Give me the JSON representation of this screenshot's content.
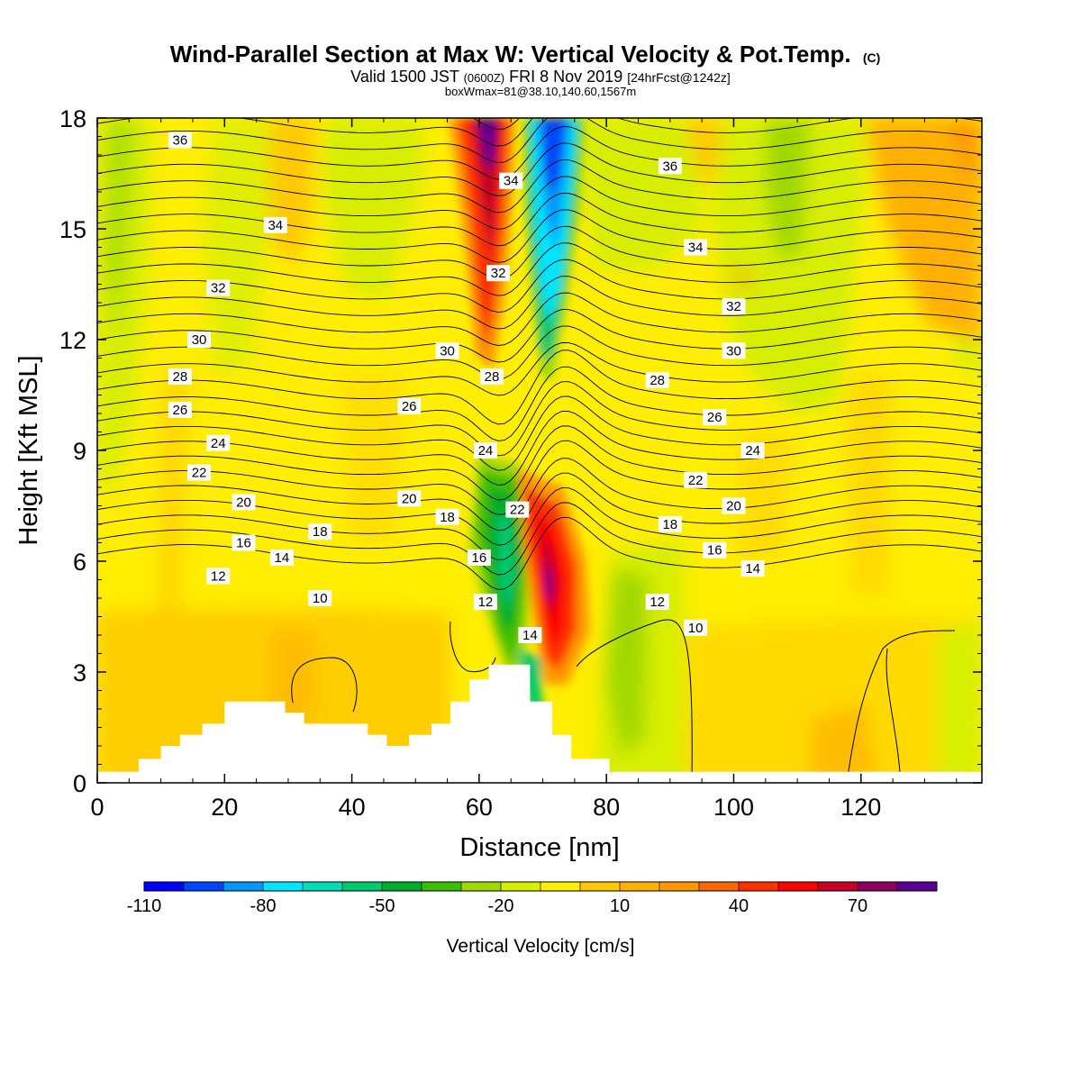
{
  "title": "Wind-Parallel Section at Max W: Vertical Velocity & Pot.Temp.",
  "title_mark": "(C)",
  "subtitle": {
    "valid": "Valid 1500 JST",
    "utc": "(0600Z)",
    "date": "FRI 8 Nov 2019",
    "forecast": "[24hrFcst@1242z]"
  },
  "box_info": "boxWmax=81@38.10,140.60,1567m",
  "chart_data": {
    "type": "heatmap",
    "xlabel": "Distance [nm]",
    "ylabel": "Height [Kft MSL]",
    "xlim": [
      0,
      139
    ],
    "ylim": [
      0,
      18
    ],
    "xticks": [
      0,
      20,
      40,
      60,
      80,
      100,
      120
    ],
    "yticks": [
      0,
      3,
      6,
      9,
      12,
      15,
      18
    ],
    "colorbar": {
      "title": "Vertical Velocity [cm/s]",
      "levels": [
        -110,
        -100,
        -90,
        -80,
        -70,
        -60,
        -50,
        -40,
        -30,
        -20,
        -10,
        0,
        10,
        20,
        30,
        40,
        50,
        60,
        70,
        80,
        90
      ],
      "tick_labels": [
        "-110",
        "-80",
        "-50",
        "-20",
        "10",
        "40",
        "70"
      ],
      "tick_values": [
        -110,
        -80,
        -50,
        -20,
        10,
        40,
        70
      ],
      "colors": [
        "#0000ff",
        "#0044ff",
        "#0099ff",
        "#00e5ff",
        "#00dcb4",
        "#00c870",
        "#00ad28",
        "#3cbe00",
        "#a0d800",
        "#d8ee00",
        "#ffee00",
        "#ffc800",
        "#ffb000",
        "#ff9800",
        "#ff6800",
        "#ff3000",
        "#ff0000",
        "#c80028",
        "#8c0060",
        "#5a0090"
      ]
    },
    "vertical_velocity_features": [
      {
        "kind": "updraft",
        "x": 63,
        "y_range": [
          11,
          18
        ],
        "max_cm_s": 80
      },
      {
        "kind": "downdraft",
        "x": 72,
        "y_range": [
          11,
          18
        ],
        "min_cm_s": -110
      },
      {
        "kind": "downdraft",
        "x": 63,
        "y_range": [
          4,
          9
        ],
        "min_cm_s": -70
      },
      {
        "kind": "updraft",
        "x": 72,
        "y_range": [
          3.5,
          9
        ],
        "max_cm_s": 90
      }
    ],
    "potential_temperature_contours": {
      "units": "label values",
      "interval": 2,
      "labels": [
        {
          "value": 36,
          "x": 13,
          "y": 17.4
        },
        {
          "value": 36,
          "x": 90,
          "y": 16.7
        },
        {
          "value": 34,
          "x": 28,
          "y": 15.1
        },
        {
          "value": 34,
          "x": 65,
          "y": 16.3
        },
        {
          "value": 34,
          "x": 94,
          "y": 14.5
        },
        {
          "value": 32,
          "x": 19,
          "y": 13.4
        },
        {
          "value": 32,
          "x": 63,
          "y": 13.8
        },
        {
          "value": 32,
          "x": 100,
          "y": 12.9
        },
        {
          "value": 30,
          "x": 16,
          "y": 12.0
        },
        {
          "value": 30,
          "x": 55,
          "y": 11.7
        },
        {
          "value": 30,
          "x": 100,
          "y": 11.7
        },
        {
          "value": 28,
          "x": 13,
          "y": 11.0
        },
        {
          "value": 28,
          "x": 62,
          "y": 11.0
        },
        {
          "value": 28,
          "x": 88,
          "y": 10.9
        },
        {
          "value": 26,
          "x": 13,
          "y": 10.1
        },
        {
          "value": 26,
          "x": 49,
          "y": 10.2
        },
        {
          "value": 26,
          "x": 97,
          "y": 9.9
        },
        {
          "value": 24,
          "x": 19,
          "y": 9.2
        },
        {
          "value": 24,
          "x": 61,
          "y": 9.0
        },
        {
          "value": 24,
          "x": 103,
          "y": 9.0
        },
        {
          "value": 22,
          "x": 16,
          "y": 8.4
        },
        {
          "value": 22,
          "x": 66,
          "y": 7.4
        },
        {
          "value": 22,
          "x": 94,
          "y": 8.2
        },
        {
          "value": 20,
          "x": 23,
          "y": 7.6
        },
        {
          "value": 20,
          "x": 49,
          "y": 7.7
        },
        {
          "value": 20,
          "x": 100,
          "y": 7.5
        },
        {
          "value": 18,
          "x": 35,
          "y": 6.8
        },
        {
          "value": 18,
          "x": 55,
          "y": 7.2
        },
        {
          "value": 18,
          "x": 90,
          "y": 7.0
        },
        {
          "value": 16,
          "x": 23,
          "y": 6.5
        },
        {
          "value": 16,
          "x": 60,
          "y": 6.1
        },
        {
          "value": 16,
          "x": 97,
          "y": 6.3
        },
        {
          "value": 14,
          "x": 29,
          "y": 6.1
        },
        {
          "value": 14,
          "x": 68,
          "y": 4.0
        },
        {
          "value": 14,
          "x": 103,
          "y": 5.8
        },
        {
          "value": 12,
          "x": 19,
          "y": 5.6
        },
        {
          "value": 12,
          "x": 61,
          "y": 4.9
        },
        {
          "value": 12,
          "x": 88,
          "y": 4.9
        },
        {
          "value": 10,
          "x": 35,
          "y": 5.0
        },
        {
          "value": 10,
          "x": 94,
          "y": 4.2
        }
      ]
    },
    "terrain_kft": [
      {
        "x": 0,
        "h": 0.3
      },
      {
        "x": 6.5,
        "h": 0.3
      },
      {
        "x": 6.5,
        "h": 0.65
      },
      {
        "x": 10,
        "h": 0.65
      },
      {
        "x": 10,
        "h": 1.0
      },
      {
        "x": 13,
        "h": 1.0
      },
      {
        "x": 13,
        "h": 1.3
      },
      {
        "x": 16.5,
        "h": 1.3
      },
      {
        "x": 16.5,
        "h": 1.6
      },
      {
        "x": 20,
        "h": 1.6
      },
      {
        "x": 20,
        "h": 2.2
      },
      {
        "x": 29.5,
        "h": 2.2
      },
      {
        "x": 29.5,
        "h": 1.9
      },
      {
        "x": 32.5,
        "h": 1.9
      },
      {
        "x": 32.5,
        "h": 1.6
      },
      {
        "x": 42.5,
        "h": 1.6
      },
      {
        "x": 42.5,
        "h": 1.3
      },
      {
        "x": 45.5,
        "h": 1.3
      },
      {
        "x": 45.5,
        "h": 1.0
      },
      {
        "x": 49,
        "h": 1.0
      },
      {
        "x": 49,
        "h": 1.3
      },
      {
        "x": 52.5,
        "h": 1.3
      },
      {
        "x": 52.5,
        "h": 1.6
      },
      {
        "x": 55.5,
        "h": 1.6
      },
      {
        "x": 55.5,
        "h": 2.2
      },
      {
        "x": 58.5,
        "h": 2.2
      },
      {
        "x": 58.5,
        "h": 2.8
      },
      {
        "x": 61.5,
        "h": 2.8
      },
      {
        "x": 61.5,
        "h": 3.2
      },
      {
        "x": 68,
        "h": 3.2
      },
      {
        "x": 68,
        "h": 2.2
      },
      {
        "x": 71.5,
        "h": 2.2
      },
      {
        "x": 71.5,
        "h": 1.3
      },
      {
        "x": 74.5,
        "h": 1.3
      },
      {
        "x": 74.5,
        "h": 0.65
      },
      {
        "x": 80.5,
        "h": 0.65
      },
      {
        "x": 80.5,
        "h": 0.3
      },
      {
        "x": 139,
        "h": 0.3
      }
    ]
  }
}
